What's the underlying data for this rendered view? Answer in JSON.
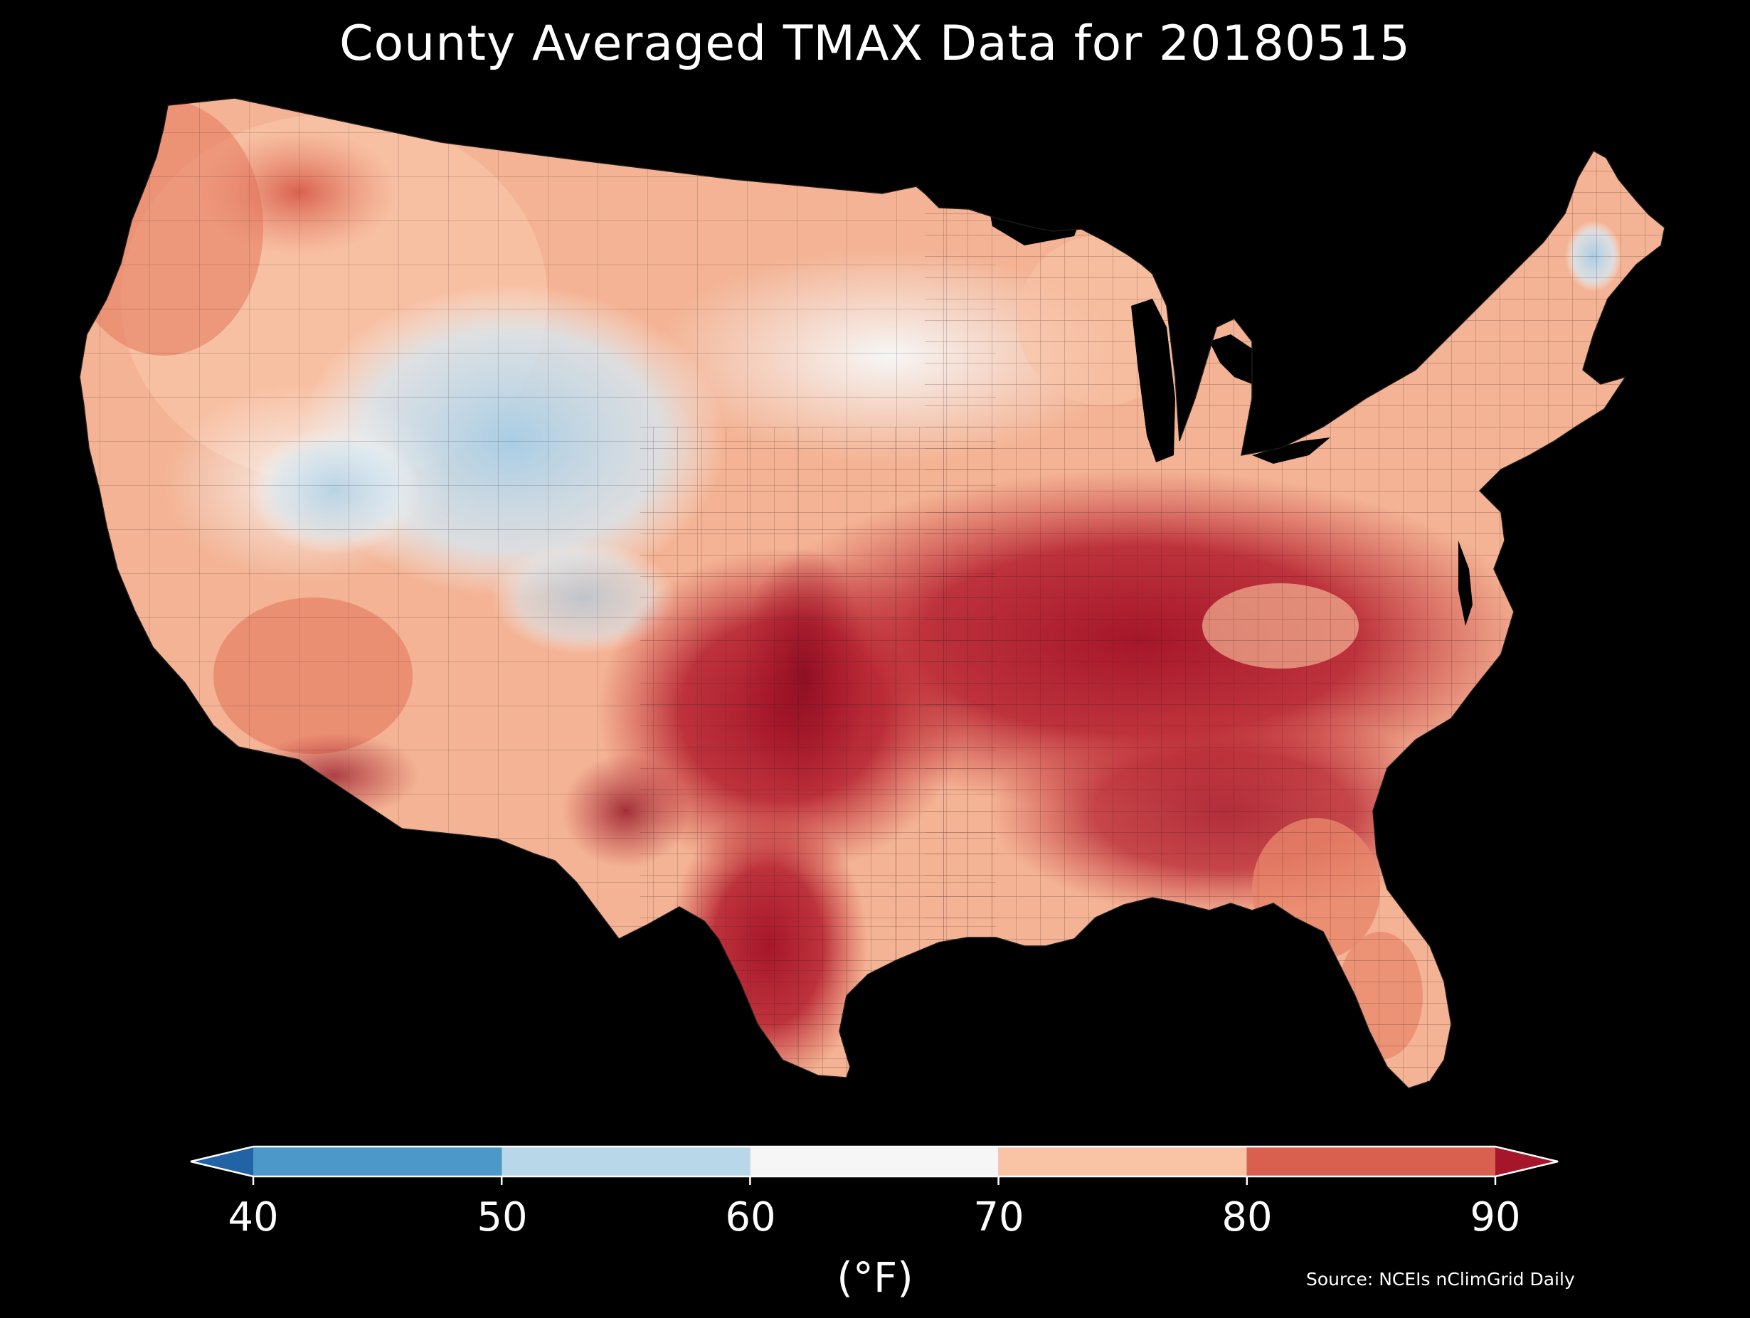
{
  "title": "County Averaged TMAX Data for 20180515",
  "source_note": "Source: NCEIs nClimGrid Daily",
  "colorbar": {
    "unit_label": "(°F)",
    "ticks": [
      "40",
      "50",
      "60",
      "70",
      "80",
      "90"
    ],
    "bins": [
      {
        "range": [
          40,
          50
        ],
        "color": "#4b98c9"
      },
      {
        "range": [
          50,
          60
        ],
        "color": "#b8d8ea"
      },
      {
        "range": [
          60,
          70
        ],
        "color": "#f6f6f6"
      },
      {
        "range": [
          70,
          80
        ],
        "color": "#f9c3a6"
      },
      {
        "range": [
          80,
          90
        ],
        "color": "#d9604f"
      }
    ],
    "under_color": "#2163a5",
    "over_color": "#a6162a",
    "extend": "both"
  },
  "map": {
    "region": "contiguous United States",
    "units": "county",
    "background_color": "#000000",
    "warmest_areas": "southern plains, Texas, southeast",
    "coolest_areas": "central Rockies, Great Basin, northern New England coast"
  }
}
